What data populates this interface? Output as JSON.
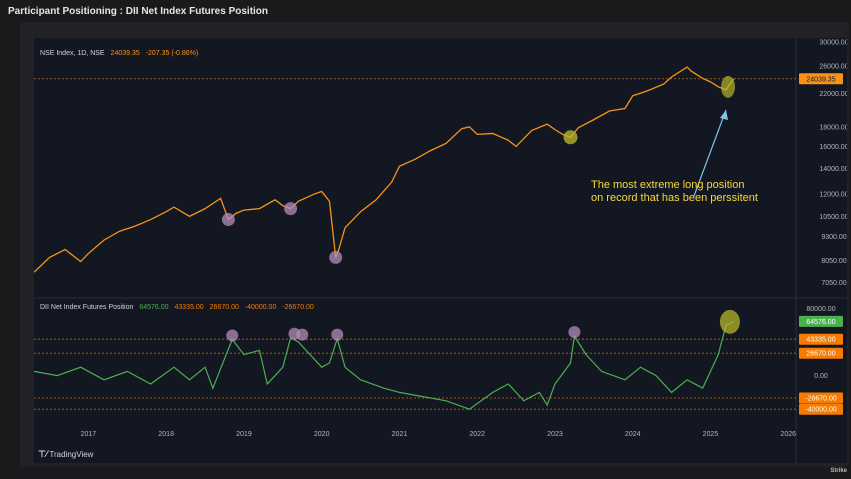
{
  "page": {
    "title": "Participant Positioning : DII Net Index Futures Position",
    "brand": "Strike"
  },
  "footer": {
    "logo_text": "TradingView"
  },
  "colors": {
    "price": "#f7931a",
    "position": "#4caf50",
    "background": "#131722",
    "highlight_purple": "#b48cb9",
    "highlight_olive": "#b5b52a"
  },
  "top_legend": {
    "symbol": "NSE Index, 1D, NSE",
    "last": "24039.35",
    "change": "-207.35 (-0.86%)"
  },
  "bottom_legend": {
    "name": "DII Net Index Futures Position",
    "v1": "64576.00",
    "v2": "43335.00",
    "v3": "26670.00",
    "v4": "-40000.00",
    "v5": "-26670.00"
  },
  "annotation": {
    "line1": "The most extreme long position",
    "line2": "on record that has been perssitent"
  },
  "chart_data": [
    {
      "type": "line",
      "yscale": "log",
      "ylim": [
        6500,
        30000
      ],
      "xlim": [
        2016.3,
        2026.1
      ],
      "yticks": [
        "30000.00",
        "26000.00",
        "22000.00",
        "18000.00",
        "16000.00",
        "14000.00",
        "12000.00",
        "10500.00",
        "9300.00",
        "8050.00",
        "7050.00"
      ],
      "price_label": "24039.35",
      "reference_line": 24039.35,
      "series": [
        {
          "name": "NSE Index, 1D, NSE",
          "x": [
            2016.3,
            2016.5,
            2016.7,
            2016.9,
            2017.0,
            2017.2,
            2017.4,
            2017.6,
            2017.8,
            2018.0,
            2018.1,
            2018.3,
            2018.5,
            2018.7,
            2018.8,
            2018.9,
            2019.0,
            2019.2,
            2019.4,
            2019.5,
            2019.6,
            2019.7,
            2019.9,
            2020.0,
            2020.1,
            2020.18,
            2020.22,
            2020.3,
            2020.5,
            2020.7,
            2020.9,
            2021.0,
            2021.2,
            2021.4,
            2021.6,
            2021.8,
            2021.9,
            2022.0,
            2022.2,
            2022.4,
            2022.5,
            2022.7,
            2022.9,
            2023.0,
            2023.1,
            2023.2,
            2023.3,
            2023.5,
            2023.7,
            2023.9,
            2024.0,
            2024.2,
            2024.4,
            2024.5,
            2024.7,
            2024.75,
            2024.9,
            2025.0,
            2025.1,
            2025.2,
            2025.3
          ],
          "y": [
            7500,
            8200,
            8600,
            8000,
            8400,
            9100,
            9600,
            9900,
            10300,
            10800,
            11100,
            10500,
            11000,
            11700,
            10300,
            10700,
            10900,
            11000,
            11600,
            11200,
            11000,
            11500,
            12000,
            12200,
            11500,
            8200,
            8600,
            9800,
            10800,
            11600,
            12900,
            14200,
            14800,
            15600,
            16300,
            17800,
            18000,
            17200,
            17300,
            16600,
            16000,
            17600,
            18300,
            17700,
            17200,
            16900,
            17900,
            18800,
            19800,
            20100,
            21700,
            22400,
            23300,
            24300,
            25800,
            25200,
            24100,
            23600,
            22900,
            22500,
            24040
          ]
        }
      ]
    },
    {
      "type": "line",
      "ylim": [
        -60000,
        90000
      ],
      "xlim": [
        2016.3,
        2026.1
      ],
      "yticks": [
        "80000.00",
        "0.00"
      ],
      "xticks": [
        "2017",
        "2018",
        "2019",
        "2020",
        "2021",
        "2022",
        "2023",
        "2024",
        "2025",
        "2026"
      ],
      "reference_lines": [
        43335,
        26670,
        -26670,
        -40000
      ],
      "value_labels": [
        "64576.00",
        "43335.00",
        "26670.00",
        "-26670.00",
        "-40000.00"
      ],
      "series": [
        {
          "name": "DII Net Index Futures Position",
          "x": [
            2016.3,
            2016.6,
            2016.9,
            2017.2,
            2017.5,
            2017.8,
            2018.1,
            2018.3,
            2018.5,
            2018.6,
            2018.75,
            2018.85,
            2019.0,
            2019.2,
            2019.3,
            2019.5,
            2019.6,
            2019.7,
            2019.8,
            2020.0,
            2020.1,
            2020.2,
            2020.3,
            2020.5,
            2020.8,
            2021.0,
            2021.3,
            2021.6,
            2021.9,
            2022.2,
            2022.4,
            2022.6,
            2022.8,
            2022.9,
            2023.0,
            2023.2,
            2023.25,
            2023.4,
            2023.6,
            2023.9,
            2024.1,
            2024.3,
            2024.5,
            2024.7,
            2024.9,
            2025.0,
            2025.1,
            2025.2,
            2025.3
          ],
          "y": [
            5000,
            0,
            10000,
            -5000,
            5000,
            -10000,
            10000,
            -5000,
            10000,
            -15000,
            20000,
            43000,
            25000,
            30000,
            -10000,
            10000,
            45000,
            40000,
            30000,
            10000,
            15000,
            44000,
            10000,
            -5000,
            -15000,
            -20000,
            -25000,
            -30000,
            -40000,
            -20000,
            -10000,
            -30000,
            -20000,
            -35000,
            -10000,
            15000,
            47000,
            25000,
            5000,
            -5000,
            10000,
            0,
            -20000,
            -5000,
            -15000,
            5000,
            25000,
            60000,
            64576
          ]
        }
      ]
    }
  ]
}
